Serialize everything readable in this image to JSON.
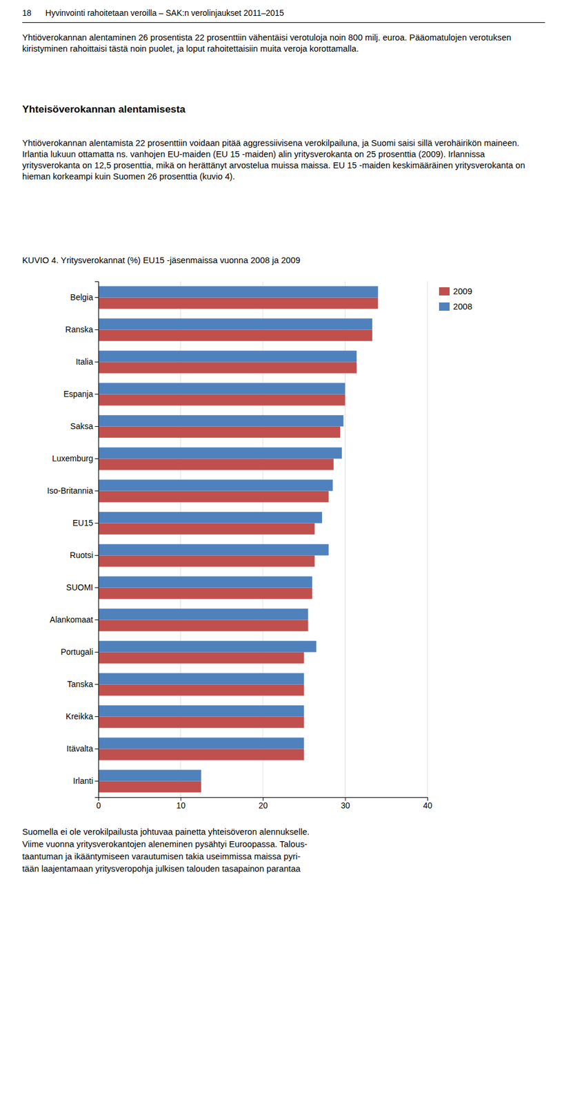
{
  "header_number": "18",
  "header_text": "Hyvinvointi rahoitetaan veroilla – SAK:n verolinjaukset 2011–2015",
  "paragraph1": "Yhtiöverokannan alentaminen 26 prosentista 22 prosenttiin vähentäisi verotuloja noin 800 milj. euroa. Pääomatulojen verotuksen kiristyminen rahoittaisi tästä noin puolet, ja loput rahoitettaisiin muita veroja korottamalla.",
  "section_title": "Yhteisöverokannan alentamisesta",
  "paragraph2": "Yhtiöverokannan alentamista 22 prosenttiin voidaan pitää aggressiivisena verokilpailuna, ja Suomi saisi sillä verohäirikön maineen. Irlantia lukuun ottamatta ns. vanhojen EU-maiden (EU 15 -maiden) alin yritysverokanta on 25 prosenttia (2009). Irlannissa yritysverokanta on 12,5 prosenttia, mikä on herättänyt arvostelua muissa maissa. EU 15 -maiden keskimääräinen yritysverokanta on hieman korkeampi kuin Suomen 26 prosenttia (kuvio 4).",
  "paragraph3": [
    "Suomella ei ole verokilpailusta johtuvaa painetta yhteisöveron alennukselle.",
    "Viime vuonna yritysverokantojen aleneminen pysähtyi Euroopassa. Talous-",
    "taantuman ja ikääntymiseen varautumisen takia useimmissa maissa pyri-",
    "tään laajentamaan yritysveropohja julkisen talouden tasapainon parantaa"
  ],
  "chart_data": {
    "type": "bar",
    "orientation": "horizontal",
    "title": "KUVIO 4. Yritysverokannat (%) EU15 -jäsenmaissa vuonna 2008 ja 2009",
    "categories": [
      "Belgia",
      "Ranska",
      "Italia",
      "Espanja",
      "Saksa",
      "Luxemburg",
      "Iso-Britannia",
      "EU15",
      "Ruotsi",
      "SUOMI",
      "Alankomaat",
      "Portugali",
      "Tanska",
      "Kreikka",
      "Itävalta",
      "Irlanti"
    ],
    "series": [
      {
        "name": "2009",
        "color": "#c0504d",
        "values": [
          34.0,
          33.3,
          31.4,
          30.0,
          29.4,
          28.6,
          28.0,
          26.3,
          26.3,
          26.0,
          25.5,
          25.0,
          25.0,
          25.0,
          25.0,
          12.5
        ]
      },
      {
        "name": "2008",
        "color": "#4f81bd",
        "values": [
          34.0,
          33.3,
          31.4,
          30.0,
          29.8,
          29.6,
          28.5,
          27.2,
          28.0,
          26.0,
          25.5,
          26.5,
          25.0,
          25.0,
          25.0,
          12.5
        ]
      }
    ],
    "xlim": [
      0,
      40
    ],
    "xticks": [
      0,
      10,
      20,
      30,
      40
    ],
    "grid": true,
    "legend": "right"
  }
}
